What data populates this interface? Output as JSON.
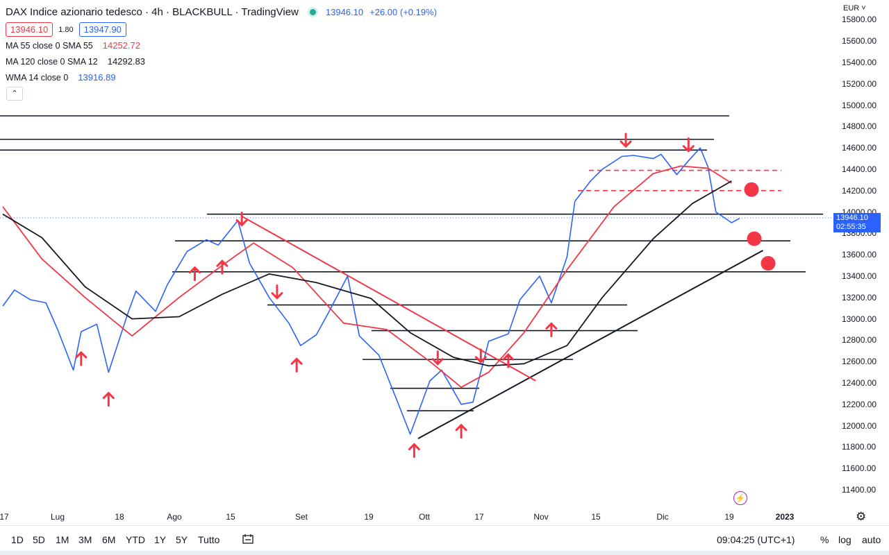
{
  "header": {
    "title": "DAX Indice azionario tedesco · 4h · BLACKBULL · TradingView",
    "last_price": "13946.10",
    "change": "+26.00 (+0.19%)",
    "sell_price": "13946.10",
    "spread": "1.80",
    "buy_price": "13947.90"
  },
  "indicators": [
    {
      "label": "MA 55 close 0 SMA 55",
      "value": "14252.72",
      "color": "#f23645"
    },
    {
      "label": "MA 120 close 0 SMA 12",
      "value": "14292.83",
      "color": "#131722"
    },
    {
      "label": "WMA 14 close 0",
      "value": "13916.89",
      "color": "#2962ff"
    }
  ],
  "price_axis": {
    "currency": "EUR",
    "tag_price": "13946.10",
    "tag_countdown": "02:55:35"
  },
  "bottom_bar": {
    "ranges": [
      "1D",
      "5D",
      "1M",
      "3M",
      "6M",
      "YTD",
      "1Y",
      "5Y",
      "Tutto"
    ],
    "clock": "09:04:25 (UTC+1)",
    "percent_label": "%",
    "log_label": "log",
    "auto_label": "auto"
  },
  "colors": {
    "price_line": "#2962ff",
    "ma55": "#f23645",
    "ma120": "#131722",
    "annotation": "#f23645",
    "tag": "#2962ff"
  },
  "chart_data": {
    "type": "line",
    "title": "DAX Indice azionario tedesco · 4h · BLACKBULL",
    "ylim": [
      11300,
      15900
    ],
    "y_ticks": [
      11400,
      11600,
      11800,
      12000,
      12200,
      12400,
      12600,
      12800,
      13000,
      13200,
      13400,
      13600,
      13800,
      14000,
      14200,
      14400,
      14600,
      14800,
      15000,
      15200,
      15400,
      15600,
      15800
    ],
    "x_ticks": [
      "17",
      "Lug",
      "18",
      "Ago",
      "15",
      "Set",
      "19",
      "Ott",
      "17",
      "Nov",
      "15",
      "Dic",
      "19",
      "2023"
    ],
    "grid": false,
    "legend": "top-left",
    "x_domain": [
      "2022-06-17",
      "2023-01-04"
    ],
    "series": [
      {
        "name": "DAX",
        "dates": [
          "2022-06-17",
          "2022-06-20",
          "2022-06-24",
          "2022-06-28",
          "2022-07-01",
          "2022-07-05",
          "2022-07-07",
          "2022-07-11",
          "2022-07-14",
          "2022-07-19",
          "2022-07-21",
          "2022-07-26",
          "2022-07-29",
          "2022-08-03",
          "2022-08-08",
          "2022-08-11",
          "2022-08-16",
          "2022-08-19",
          "2022-08-24",
          "2022-08-29",
          "2022-09-01",
          "2022-09-05",
          "2022-09-08",
          "2022-09-13",
          "2022-09-16",
          "2022-09-21",
          "2022-09-26",
          "2022-09-29",
          "2022-10-04",
          "2022-10-07",
          "2022-10-12",
          "2022-10-15",
          "2022-10-19",
          "2022-10-24",
          "2022-10-27",
          "2022-11-01",
          "2022-11-04",
          "2022-11-08",
          "2022-11-10",
          "2022-11-14",
          "2022-11-17",
          "2022-11-22",
          "2022-11-25",
          "2022-11-30",
          "2022-12-02",
          "2022-12-06",
          "2022-12-09",
          "2022-12-12",
          "2022-12-14",
          "2022-12-16",
          "2022-12-20",
          "2022-12-22"
        ],
        "values": [
          13120,
          13270,
          13180,
          13150,
          12900,
          12520,
          12880,
          12950,
          12500,
          13060,
          13260,
          13070,
          13320,
          13630,
          13740,
          13690,
          13920,
          13520,
          13200,
          12960,
          12750,
          12850,
          13050,
          13400,
          12840,
          12660,
          12200,
          11920,
          12420,
          12520,
          12200,
          12220,
          12790,
          12860,
          13180,
          13400,
          13150,
          13580,
          14100,
          14290,
          14400,
          14520,
          14530,
          14500,
          14540,
          14350,
          14480,
          14600,
          14420,
          14000,
          13900,
          13940
        ]
      },
      {
        "name": "MA 55",
        "dates": [
          "2022-06-17",
          "2022-06-27",
          "2022-07-08",
          "2022-07-20",
          "2022-08-01",
          "2022-08-12",
          "2022-08-20",
          "2022-08-30",
          "2022-09-12",
          "2022-09-23",
          "2022-10-04",
          "2022-10-12",
          "2022-10-19",
          "2022-10-28",
          "2022-11-08",
          "2022-11-20",
          "2022-11-30",
          "2022-12-07",
          "2022-12-14",
          "2022-12-20"
        ],
        "values": [
          14050,
          13560,
          13200,
          12840,
          13200,
          13500,
          13710,
          13480,
          12960,
          12900,
          12600,
          12360,
          12500,
          12870,
          13460,
          14050,
          14360,
          14430,
          14410,
          14270
        ]
      },
      {
        "name": "MA 120",
        "dates": [
          "2022-06-17",
          "2022-06-27",
          "2022-07-08",
          "2022-07-20",
          "2022-08-01",
          "2022-08-12",
          "2022-08-24",
          "2022-09-05",
          "2022-09-19",
          "2022-09-29",
          "2022-10-10",
          "2022-10-19",
          "2022-10-28",
          "2022-11-08",
          "2022-11-17",
          "2022-11-30",
          "2022-12-10",
          "2022-12-20"
        ],
        "values": [
          13980,
          13760,
          13300,
          13000,
          13020,
          13230,
          13420,
          13340,
          13190,
          12870,
          12640,
          12560,
          12580,
          12750,
          13200,
          13750,
          14080,
          14290
        ]
      }
    ],
    "annotations": {
      "horizontal_levels": [
        14900,
        14680,
        14580,
        13980,
        13730,
        13440,
        13130,
        12890,
        12620,
        12350,
        12140
      ],
      "dashed_levels": [
        14390,
        14200
      ],
      "trendlines": [
        {
          "from": [
            "2022-10-01",
            11880
          ],
          "to": [
            "2022-12-28",
            13640
          ],
          "color": "#131722"
        },
        {
          "from": [
            "2022-08-17",
            13960
          ],
          "to": [
            "2022-10-31",
            12420
          ],
          "color": "#f23645"
        }
      ],
      "up_arrows": [
        "2022-07-07",
        "2022-07-14",
        "2022-08-05",
        "2022-08-12",
        "2022-08-31",
        "2022-09-30",
        "2022-10-12",
        "2022-10-24",
        "2022-11-04"
      ],
      "down_arrows": [
        "2022-08-17",
        "2022-08-26",
        "2022-10-06",
        "2022-10-17",
        "2022-11-23",
        "2022-12-09"
      ],
      "red_dots": [
        14210,
        13750,
        13520
      ]
    }
  }
}
